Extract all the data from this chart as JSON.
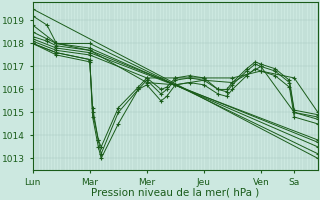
{
  "background_color": "#cce8e0",
  "grid_color": "#a8c8c0",
  "line_color": "#1a5c1a",
  "xlabel": "Pression niveau de la mer( hPa )",
  "xlabel_fontsize": 7.5,
  "tick_fontsize": 6.5,
  "ylim": [
    1012.5,
    1019.8
  ],
  "yticks": [
    1013,
    1014,
    1015,
    1016,
    1017,
    1018,
    1019
  ],
  "x_day_labels": [
    "Lun",
    "Mar",
    "Mer",
    "Jeu",
    "Ven",
    "Sa"
  ],
  "x_day_positions": [
    0,
    0.2,
    0.4,
    0.6,
    0.8,
    0.917
  ],
  "xlim": [
    0,
    1.0
  ],
  "series": [
    {
      "points": [
        [
          0.0,
          1019.5
        ],
        [
          1.0,
          1013.0
        ]
      ]
    },
    {
      "points": [
        [
          0.0,
          1019.2
        ],
        [
          0.05,
          1018.8
        ],
        [
          0.083,
          1018.0
        ],
        [
          0.2,
          1018.0
        ],
        [
          1.0,
          1013.2
        ]
      ]
    },
    {
      "points": [
        [
          0.0,
          1018.5
        ],
        [
          0.05,
          1018.2
        ],
        [
          0.083,
          1018.0
        ],
        [
          0.2,
          1017.8
        ],
        [
          1.0,
          1013.5
        ]
      ]
    },
    {
      "points": [
        [
          0.0,
          1018.3
        ],
        [
          0.05,
          1018.1
        ],
        [
          0.083,
          1017.9
        ],
        [
          0.2,
          1017.7
        ],
        [
          1.0,
          1013.7
        ]
      ]
    },
    {
      "points": [
        [
          0.0,
          1018.2
        ],
        [
          0.083,
          1017.8
        ],
        [
          0.2,
          1017.6
        ],
        [
          1.0,
          1013.8
        ]
      ]
    },
    {
      "points": [
        [
          0.0,
          1018.1
        ],
        [
          0.083,
          1017.7
        ],
        [
          0.2,
          1017.5
        ],
        [
          0.4,
          1016.5
        ],
        [
          0.5,
          1016.5
        ],
        [
          0.6,
          1016.5
        ],
        [
          0.7,
          1016.5
        ],
        [
          0.8,
          1016.8
        ],
        [
          0.917,
          1016.5
        ],
        [
          1.0,
          1015.0
        ]
      ]
    },
    {
      "points": [
        [
          0.0,
          1018.0
        ],
        [
          0.083,
          1017.6
        ],
        [
          0.2,
          1017.3
        ],
        [
          0.21,
          1014.8
        ],
        [
          0.23,
          1013.5
        ],
        [
          0.24,
          1013.0
        ],
        [
          0.3,
          1014.5
        ],
        [
          0.37,
          1016.0
        ],
        [
          0.4,
          1016.2
        ],
        [
          0.45,
          1015.5
        ],
        [
          0.47,
          1015.7
        ],
        [
          0.5,
          1016.2
        ],
        [
          0.55,
          1016.3
        ],
        [
          0.6,
          1016.2
        ],
        [
          0.65,
          1015.8
        ],
        [
          0.68,
          1015.7
        ],
        [
          0.7,
          1016.0
        ],
        [
          0.75,
          1016.6
        ],
        [
          0.78,
          1016.9
        ],
        [
          0.8,
          1016.8
        ],
        [
          0.85,
          1016.6
        ],
        [
          0.9,
          1016.1
        ],
        [
          0.917,
          1014.8
        ],
        [
          1.0,
          1014.5
        ]
      ]
    },
    {
      "points": [
        [
          0.0,
          1018.0
        ],
        [
          0.083,
          1017.6
        ],
        [
          0.2,
          1017.3
        ],
        [
          0.21,
          1015.0
        ],
        [
          0.23,
          1013.8
        ],
        [
          0.24,
          1013.2
        ],
        [
          0.3,
          1015.0
        ],
        [
          0.37,
          1016.0
        ],
        [
          0.4,
          1016.4
        ],
        [
          0.45,
          1015.8
        ],
        [
          0.47,
          1016.0
        ],
        [
          0.5,
          1016.4
        ],
        [
          0.55,
          1016.5
        ],
        [
          0.6,
          1016.4
        ],
        [
          0.65,
          1016.0
        ],
        [
          0.68,
          1015.9
        ],
        [
          0.7,
          1016.2
        ],
        [
          0.75,
          1016.8
        ],
        [
          0.78,
          1017.1
        ],
        [
          0.8,
          1017.0
        ],
        [
          0.85,
          1016.8
        ],
        [
          0.9,
          1016.3
        ],
        [
          0.917,
          1015.0
        ],
        [
          1.0,
          1014.8
        ]
      ]
    },
    {
      "points": [
        [
          0.0,
          1018.0
        ],
        [
          0.083,
          1017.5
        ],
        [
          0.2,
          1017.2
        ],
        [
          0.21,
          1015.2
        ],
        [
          0.23,
          1013.8
        ],
        [
          0.24,
          1013.5
        ],
        [
          0.3,
          1015.2
        ],
        [
          0.37,
          1016.1
        ],
        [
          0.4,
          1016.5
        ],
        [
          0.45,
          1016.0
        ],
        [
          0.47,
          1016.1
        ],
        [
          0.5,
          1016.5
        ],
        [
          0.55,
          1016.6
        ],
        [
          0.6,
          1016.5
        ],
        [
          0.65,
          1016.0
        ],
        [
          0.68,
          1016.0
        ],
        [
          0.7,
          1016.3
        ],
        [
          0.75,
          1016.9
        ],
        [
          0.78,
          1017.2
        ],
        [
          0.8,
          1017.1
        ],
        [
          0.85,
          1016.9
        ],
        [
          0.9,
          1016.4
        ],
        [
          0.917,
          1015.1
        ],
        [
          1.0,
          1014.9
        ]
      ]
    },
    {
      "points": [
        [
          0.0,
          1018.8
        ],
        [
          0.083,
          1018.0
        ],
        [
          0.2,
          1017.7
        ],
        [
          0.4,
          1016.3
        ],
        [
          0.5,
          1016.2
        ],
        [
          0.6,
          1016.4
        ],
        [
          0.7,
          1016.3
        ],
        [
          0.8,
          1017.0
        ],
        [
          0.917,
          1015.0
        ],
        [
          1.0,
          1014.7
        ]
      ]
    }
  ],
  "n_fine_vgrid": 100,
  "n_fine_hgrid": 7
}
